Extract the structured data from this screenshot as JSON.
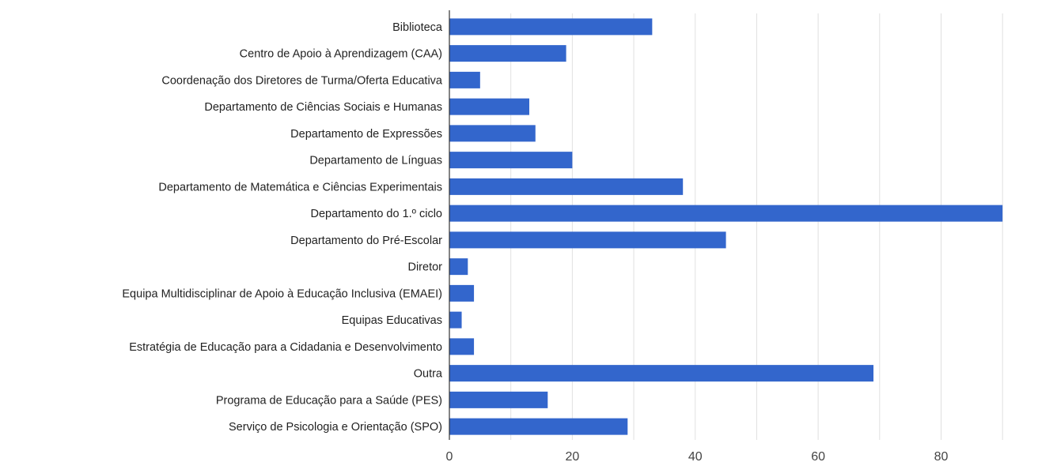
{
  "chart_data": {
    "type": "bar",
    "orientation": "horizontal",
    "categories": [
      "Biblioteca",
      "Centro de Apoio à Aprendizagem (CAA)",
      "Coordenação dos Diretores de Turma/Oferta Educativa",
      "Departamento de Ciências Sociais e Humanas",
      "Departamento de Expressões",
      "Departamento de Línguas",
      "Departamento de Matemática e Ciências Experimentais",
      "Departamento do 1.º ciclo",
      "Departamento do Pré-Escolar",
      "Diretor",
      "Equipa Multidisciplinar de Apoio à Educação Inclusiva (EMAEI)",
      "Equipas Educativas",
      "Estratégia de Educação para a Cidadania e Desenvolvimento",
      "Outra",
      "Programa de Educação para a Saúde (PES)",
      "Serviço de Psicologia e Orientação (SPO)"
    ],
    "values": [
      33,
      19,
      5,
      13,
      14,
      20,
      38,
      90,
      45,
      3,
      4,
      2,
      4,
      69,
      16,
      29
    ],
    "xlim": [
      0,
      95
    ],
    "xticks": [
      0,
      20,
      40,
      60,
      80
    ],
    "grid": true,
    "colors": {
      "bar": "#3366cc",
      "grid": "#e0e0e0",
      "axis": "#333333"
    },
    "title": "",
    "xlabel": "",
    "ylabel": ""
  }
}
